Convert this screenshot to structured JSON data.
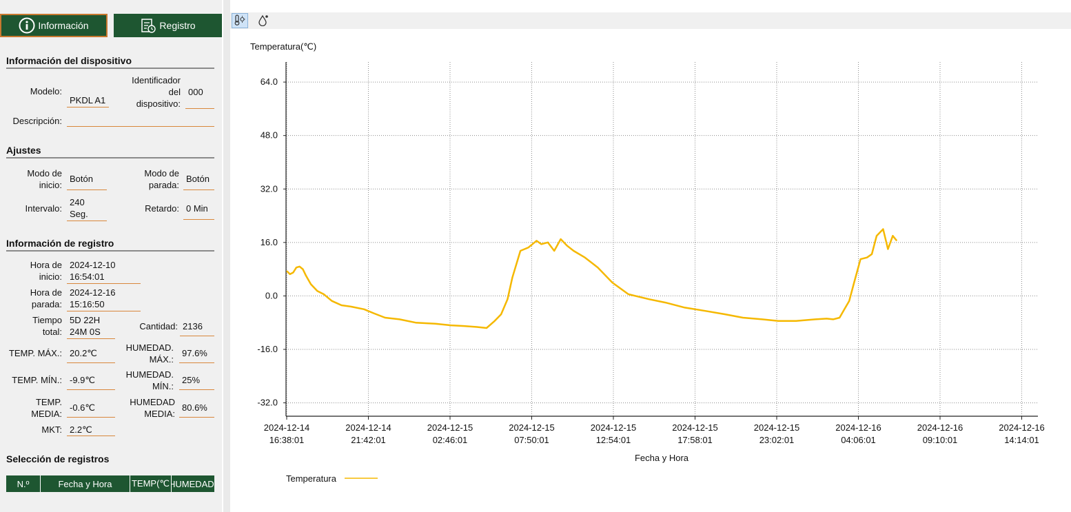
{
  "tabs": {
    "info_label": "Información",
    "registro_label": "Registro"
  },
  "device": {
    "section_title": "Información del dispositivo",
    "model_label": "Modelo:",
    "model_value": "PKDL A1",
    "id_label_1": "Identificador",
    "id_label_2": "del",
    "id_label_3": "dispositivo:",
    "id_value": "000",
    "desc_label": "Descripción:",
    "desc_value": ""
  },
  "settings": {
    "section_title": "Ajustes",
    "start_mode_label_1": "Modo de",
    "start_mode_label_2": "inicio:",
    "start_mode_value": "Botón",
    "stop_mode_label_1": "Modo de",
    "stop_mode_label_2": "parada:",
    "stop_mode_value": "Botón",
    "interval_label": "Intervalo:",
    "interval_value_1": "240",
    "interval_value_2": "Seg.",
    "delay_label": "Retardo:",
    "delay_value": "0 Min"
  },
  "record_info": {
    "section_title": "Información de registro",
    "start_label_1": "Hora de",
    "start_label_2": "inicio:",
    "start_date": "2024-12-10",
    "start_time": "16:54:01",
    "stop_label_1": "Hora de",
    "stop_label_2": "parada:",
    "stop_date": "2024-12-16",
    "stop_time": "15:16:50",
    "total_label_1": "Tiempo",
    "total_label_2": "total:",
    "total_value_1": "5D 22H",
    "total_value_2": "24M 0S",
    "count_label": "Cantidad:",
    "count_value": "2136",
    "temp_max_label": "TEMP. MÁX.:",
    "temp_max_value": "20.2℃",
    "hum_max_label_1": "HUMEDAD.",
    "hum_max_label_2": "MÁX.:",
    "hum_max_value": "97.6%",
    "temp_min_label": "TEMP. MÍN.:",
    "temp_min_value": "-9.9℃",
    "hum_min_label_1": "HUMEDAD.",
    "hum_min_label_2": "MÍN.:",
    "hum_min_value": "25%",
    "temp_avg_label_1": "TEMP.",
    "temp_avg_label_2": "MEDIA:",
    "temp_avg_value": "-0.6℃",
    "hum_avg_label_1": "HUMEDAD",
    "hum_avg_label_2": "MEDIA:",
    "hum_avg_value": "80.6%",
    "mkt_label": "MKT:",
    "mkt_value": "2.2℃"
  },
  "selection": {
    "section_title": "Selección de registros",
    "columns": [
      "N.º",
      "Fecha y Hora",
      "TEMP(℃",
      "HUMEDAD("
    ]
  },
  "colors": {
    "accent": "#1e5631",
    "underline": "#d8863a",
    "series": "#f5b800"
  },
  "icons": {
    "temp_button": "thermometer-sun-icon",
    "hum_button": "water-drop-icon"
  },
  "chart_data": {
    "type": "line",
    "ylabel": "Temperatura(℃)",
    "xlabel": "Fecha y Hora",
    "ylim": [
      -36,
      70
    ],
    "yticks": [
      64.0,
      48.0,
      32.0,
      16.0,
      0.0,
      -16.0,
      -32.0
    ],
    "ytick_labels": [
      "64.0",
      "48.0",
      "32.0",
      "16.0",
      "0.0",
      "-16.0",
      "-32.0"
    ],
    "xticks": [
      [
        "2024-12-14",
        "16:38:01"
      ],
      [
        "2024-12-14",
        "21:42:01"
      ],
      [
        "2024-12-15",
        "02:46:01"
      ],
      [
        "2024-12-15",
        "07:50:01"
      ],
      [
        "2024-12-15",
        "12:54:01"
      ],
      [
        "2024-12-15",
        "17:58:01"
      ],
      [
        "2024-12-15",
        "23:02:01"
      ],
      [
        "2024-12-16",
        "04:06:01"
      ],
      [
        "2024-12-16",
        "09:10:01"
      ],
      [
        "2024-12-16",
        "14:14:01"
      ]
    ],
    "grid": true,
    "legend_position": "bottom-left",
    "series": [
      {
        "name": "Temperatura",
        "color": "#f5b800",
        "x_hours": [
          0,
          0.2,
          0.4,
          0.6,
          0.8,
          1.0,
          1.2,
          1.5,
          1.9,
          2.3,
          2.8,
          3.4,
          4.0,
          4.8,
          5.4,
          6.1,
          7.0,
          8.0,
          9.2,
          10.2,
          11.0,
          11.8,
          12.4,
          12.9,
          13.3,
          13.7,
          14.0,
          14.5,
          15.0,
          15.5,
          15.8,
          16.2,
          16.6,
          17.0,
          17.4,
          17.8,
          18.5,
          19.3,
          20.2,
          21.2,
          22.5,
          23.5,
          24.7,
          26.0,
          27.2,
          28.3,
          29.5,
          30.5,
          31.6,
          32.8,
          33.5,
          33.9,
          34.3,
          34.6,
          34.9,
          35.2,
          35.6,
          36.0,
          36.3,
          36.6,
          37.0,
          37.3,
          37.6,
          37.85
        ],
        "values": [
          7.5,
          6.5,
          7.0,
          8.5,
          8.8,
          8.0,
          6.0,
          3.5,
          1.5,
          0.5,
          -1.5,
          -2.8,
          -3.2,
          -4.0,
          -5.2,
          -6.5,
          -7.0,
          -8.0,
          -8.3,
          -8.8,
          -9.0,
          -9.3,
          -9.6,
          -7.5,
          -5.5,
          -1.0,
          5.5,
          13.5,
          14.5,
          16.5,
          15.5,
          16.0,
          13.5,
          17.0,
          15.0,
          13.5,
          11.5,
          8.5,
          4.0,
          0.5,
          -1.0,
          -2.0,
          -3.5,
          -4.5,
          -5.5,
          -6.5,
          -7.0,
          -7.5,
          -7.5,
          -7.0,
          -6.8,
          -7.0,
          -6.5,
          -4.0,
          -1.5,
          4.0,
          11.0,
          11.5,
          12.5,
          18.0,
          20.0,
          14.0,
          18.0,
          16.5
        ]
      }
    ]
  }
}
